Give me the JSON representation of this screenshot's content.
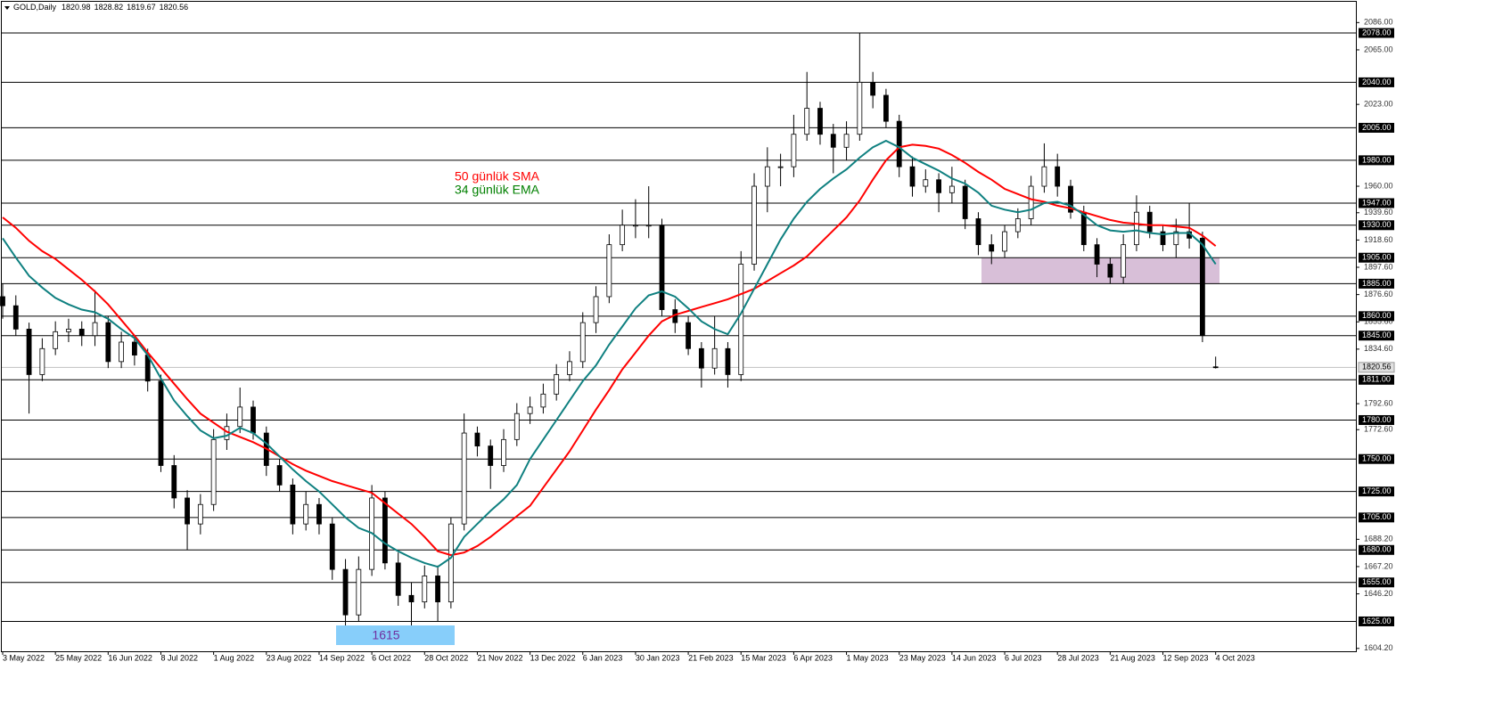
{
  "chart_data": {
    "type": "candlestick",
    "title": "GOLD,Daily",
    "categories": [
      "3 May 2022",
      null,
      null,
      null,
      "25 May 2022",
      null,
      null,
      null,
      "16 Jun 2022",
      null,
      null,
      null,
      "8 Jul 2022",
      null,
      null,
      null,
      "1 Aug 2022",
      null,
      null,
      null,
      "23 Aug 2022",
      null,
      null,
      null,
      "14 Sep 2022",
      null,
      null,
      null,
      "6 Oct 2022",
      null,
      null,
      null,
      "28 Oct 2022",
      null,
      null,
      null,
      "21 Nov 2022",
      null,
      null,
      null,
      "13 Dec 2022",
      null,
      null,
      null,
      "6 Jan 2023",
      null,
      null,
      null,
      "30 Jan 2023",
      null,
      null,
      null,
      "21 Feb 2023",
      null,
      null,
      null,
      "15 Mar 2023",
      null,
      null,
      null,
      "6 Apr 2023",
      null,
      null,
      null,
      "1 May 2023",
      null,
      null,
      null,
      "23 May 2023",
      null,
      null,
      null,
      "14 Jun 2023",
      null,
      null,
      null,
      "6 Jul 2023",
      null,
      null,
      null,
      "28 Jul 2023",
      null,
      null,
      null,
      "21 Aug 2023",
      null,
      null,
      null,
      "12 Sep 2023",
      null,
      null,
      null,
      "4 Oct 2023"
    ],
    "ohlc": {
      "open": [
        1875,
        1868,
        1850,
        1815,
        1835,
        1848,
        1850,
        1845,
        1855,
        1825,
        1840,
        1830,
        1810,
        1745,
        1720,
        1700,
        1715,
        1765,
        1775,
        1790,
        1770,
        1745,
        1730,
        1700,
        1715,
        1700,
        1665,
        1630,
        1665,
        1720,
        1670,
        1645,
        1640,
        1660,
        1640,
        1700,
        1770,
        1760,
        1745,
        1765,
        1785,
        1790,
        1800,
        1815,
        1825,
        1855,
        1875,
        1915,
        1930,
        1930,
        1930,
        1865,
        1855,
        1835,
        1820,
        1835,
        1815,
        1900,
        1960,
        1975,
        1975,
        2000,
        2020,
        2000,
        1990,
        2000,
        2040,
        2030,
        2010,
        1975,
        1960,
        1965,
        1955,
        1960,
        1935,
        1915,
        1910,
        1925,
        1935,
        1960,
        1975,
        1960,
        1940,
        1915,
        1900,
        1890,
        1915,
        1940,
        1925,
        1915,
        1925,
        1920,
        1820.98
      ],
      "high": [
        1885,
        1876,
        1855,
        1843,
        1856,
        1858,
        1856,
        1880,
        1860,
        1848,
        1845,
        1835,
        1815,
        1753,
        1726,
        1723,
        1773,
        1785,
        1805,
        1795,
        1775,
        1750,
        1735,
        1725,
        1720,
        1705,
        1673,
        1675,
        1730,
        1725,
        1678,
        1655,
        1668,
        1668,
        1705,
        1785,
        1775,
        1765,
        1773,
        1793,
        1798,
        1808,
        1823,
        1833,
        1863,
        1883,
        1923,
        1942,
        1950,
        1960,
        1935,
        1873,
        1860,
        1840,
        1860,
        1840,
        1910,
        1970,
        1990,
        1985,
        2015,
        2048,
        2025,
        2008,
        2010,
        2078,
        2048,
        2035,
        2015,
        1983,
        1973,
        1970,
        1975,
        1965,
        1940,
        1923,
        1930,
        1943,
        1968,
        1993,
        1985,
        1965,
        1945,
        1920,
        1905,
        1923,
        1953,
        1945,
        1930,
        1935,
        1947,
        1925,
        1828.82
      ],
      "low": [
        1858,
        1845,
        1785,
        1810,
        1830,
        1840,
        1837,
        1837,
        1820,
        1820,
        1822,
        1802,
        1740,
        1712,
        1680,
        1692,
        1710,
        1757,
        1770,
        1765,
        1737,
        1725,
        1692,
        1695,
        1692,
        1657,
        1615,
        1625,
        1660,
        1665,
        1637,
        1618,
        1635,
        1625,
        1635,
        1695,
        1752,
        1727,
        1740,
        1760,
        1777,
        1785,
        1795,
        1810,
        1820,
        1847,
        1870,
        1910,
        1920,
        1920,
        1860,
        1847,
        1830,
        1805,
        1815,
        1805,
        1810,
        1895,
        1940,
        1960,
        1967,
        1995,
        1992,
        1970,
        1980,
        1995,
        2020,
        2005,
        1967,
        1952,
        1955,
        1940,
        1947,
        1927,
        1907,
        1900,
        1905,
        1920,
        1930,
        1955,
        1952,
        1935,
        1910,
        1890,
        1885,
        1885,
        1910,
        1920,
        1910,
        1905,
        1912,
        1840,
        1819.67
      ],
      "close": [
        1868,
        1850,
        1815,
        1835,
        1848,
        1850,
        1845,
        1855,
        1825,
        1840,
        1830,
        1810,
        1745,
        1720,
        1700,
        1715,
        1765,
        1775,
        1790,
        1770,
        1745,
        1730,
        1700,
        1715,
        1700,
        1665,
        1630,
        1665,
        1720,
        1670,
        1645,
        1640,
        1660,
        1640,
        1700,
        1770,
        1760,
        1745,
        1765,
        1785,
        1790,
        1800,
        1815,
        1825,
        1855,
        1875,
        1915,
        1930,
        1930,
        1930,
        1865,
        1855,
        1835,
        1820,
        1835,
        1815,
        1900,
        1960,
        1975,
        1975,
        2000,
        2020,
        2000,
        1990,
        2000,
        2040,
        2030,
        2010,
        1975,
        1960,
        1965,
        1955,
        1960,
        1935,
        1915,
        1910,
        1925,
        1935,
        1960,
        1975,
        1960,
        1940,
        1915,
        1900,
        1890,
        1915,
        1940,
        1925,
        1915,
        1925,
        1920,
        1845,
        1820.56
      ]
    },
    "series": [
      {
        "name": "50 günlük SMA",
        "color": "#ff0000",
        "text_color": "#ff0000",
        "values": [
          1936,
          1928,
          1918,
          1910,
          1904,
          1896,
          1888,
          1879,
          1869,
          1857,
          1845,
          1832,
          1820,
          1808,
          1796,
          1785,
          1778,
          1771,
          1767,
          1763,
          1758,
          1752,
          1746,
          1741,
          1737,
          1733,
          1730,
          1727,
          1724,
          1716,
          1708,
          1700,
          1690,
          1679,
          1676,
          1678,
          1683,
          1690,
          1698,
          1706,
          1714,
          1728,
          1742,
          1756,
          1772,
          1788,
          1803,
          1819,
          1832,
          1845,
          1856,
          1861,
          1864,
          1867,
          1870,
          1873,
          1877,
          1881,
          1887,
          1893,
          1899,
          1906,
          1916,
          1926,
          1936,
          1949,
          1965,
          1980,
          1990,
          1992,
          1991,
          1989,
          1984,
          1978,
          1971,
          1965,
          1958,
          1954,
          1950,
          1948,
          1945,
          1943,
          1940,
          1937,
          1934,
          1932,
          1931,
          1930,
          1930,
          1929,
          1928,
          1922,
          1914
        ]
      },
      {
        "name": "34 günlük EMA",
        "color": "#0f8080",
        "text_color": "#008000",
        "values": [
          1920,
          1905,
          1891,
          1882,
          1874,
          1869,
          1865,
          1863,
          1858,
          1850,
          1843,
          1830,
          1812,
          1795,
          1783,
          1772,
          1766,
          1768,
          1774,
          1770,
          1762,
          1752,
          1742,
          1733,
          1725,
          1715,
          1705,
          1697,
          1693,
          1685,
          1679,
          1674,
          1670,
          1667,
          1674,
          1690,
          1700,
          1710,
          1719,
          1730,
          1750,
          1765,
          1780,
          1795,
          1810,
          1822,
          1838,
          1852,
          1866,
          1876,
          1879,
          1875,
          1866,
          1856,
          1850,
          1846,
          1862,
          1881,
          1900,
          1919,
          1935,
          1948,
          1958,
          1966,
          1973,
          1982,
          1990,
          1995,
          1990,
          1982,
          1977,
          1972,
          1966,
          1962,
          1955,
          1945,
          1942,
          1940,
          1942,
          1947,
          1948,
          1945,
          1938,
          1930,
          1926,
          1925,
          1926,
          1924,
          1923,
          1924,
          1924,
          1915,
          1900
        ]
      }
    ],
    "ylim": [
      1602,
      2102
    ],
    "yticks": [
      {
        "value": 2086,
        "label": "2086.00"
      },
      {
        "value": 2065,
        "label": "2065.00"
      },
      {
        "value": 2023,
        "label": "2023.00"
      },
      {
        "value": 1960,
        "label": "1960.00"
      },
      {
        "value": 1939.6,
        "label": "1939.60"
      },
      {
        "value": 1918.6,
        "label": "1918.60"
      },
      {
        "value": 1897.6,
        "label": "1897.60"
      },
      {
        "value": 1876.6,
        "label": "1876.60"
      },
      {
        "value": 1855.6,
        "label": "1855.60"
      },
      {
        "value": 1834.6,
        "label": "1834.60"
      },
      {
        "value": 1792.6,
        "label": "1792.60"
      },
      {
        "value": 1772.6,
        "label": "1772.60"
      },
      {
        "value": 1688.2,
        "label": "1688.20"
      },
      {
        "value": 1667.2,
        "label": "1667.20"
      },
      {
        "value": 1646.2,
        "label": "1646.20"
      },
      {
        "value": 1604.2,
        "label": "1604.20"
      }
    ],
    "levels": [
      {
        "value": 2078,
        "label": "2078.00"
      },
      {
        "value": 2040,
        "label": "2040.00"
      },
      {
        "value": 2005,
        "label": "2005.00"
      },
      {
        "value": 1980,
        "label": "1980.00"
      },
      {
        "value": 1947,
        "label": "1947.00"
      },
      {
        "value": 1930,
        "label": "1930.00"
      },
      {
        "value": 1905,
        "label": "1905.00"
      },
      {
        "value": 1885,
        "label": "1885.00"
      },
      {
        "value": 1860,
        "label": "1860.00"
      },
      {
        "value": 1845,
        "label": "1845.00"
      },
      {
        "value": 1811,
        "label": "1811.00"
      },
      {
        "value": 1780,
        "label": "1780.00"
      },
      {
        "value": 1750,
        "label": "1750.00"
      },
      {
        "value": 1725,
        "label": "1725.00"
      },
      {
        "value": 1705,
        "label": "1705.00"
      },
      {
        "value": 1680,
        "label": "1680.00"
      },
      {
        "value": 1655,
        "label": "1655.00"
      },
      {
        "value": 1625,
        "label": "1625.00"
      }
    ],
    "zone": {
      "low": 1885,
      "high": 1905,
      "color": "#d8bfd8"
    },
    "annotation": {
      "text": "1615",
      "color": "#7030a0",
      "background": "#87cefa"
    }
  }
}
